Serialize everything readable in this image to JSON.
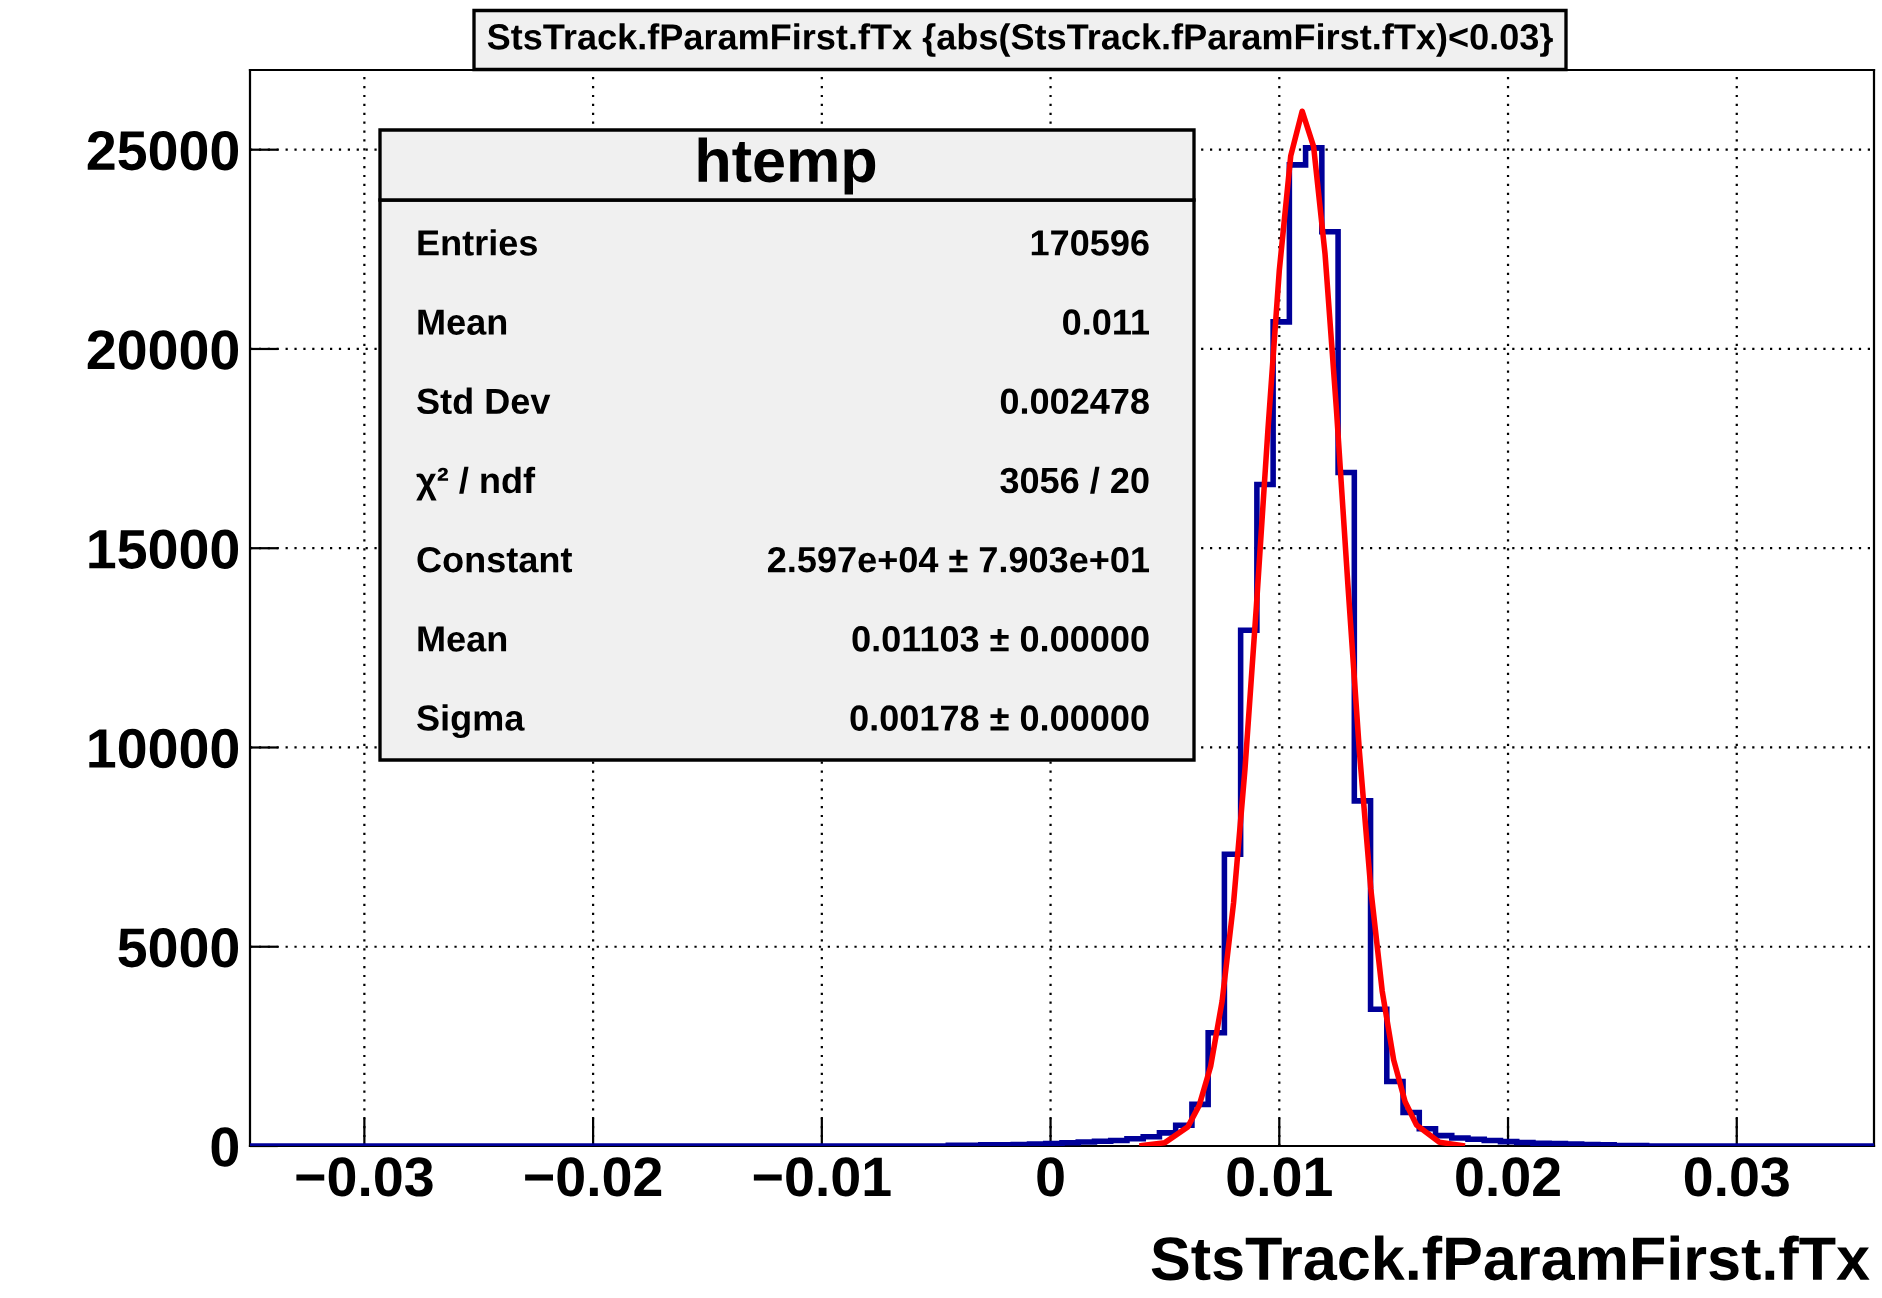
{
  "chart_data": {
    "type": "histogram",
    "title": "StsTrack.fParamFirst.fTx {abs(StsTrack.fParamFirst.fTx)<0.03}",
    "xlabel": "StsTrack.fParamFirst.fTx",
    "xlim": [
      -0.035,
      0.036
    ],
    "xticks": [
      {
        "value": -0.03,
        "label": "−0.03"
      },
      {
        "value": -0.02,
        "label": "−0.02"
      },
      {
        "value": -0.01,
        "label": "−0.01"
      },
      0,
      0.01,
      0.02,
      0.03
    ],
    "ylim": [
      0,
      27000
    ],
    "yticks": [
      0,
      5000,
      10000,
      15000,
      20000,
      25000
    ],
    "grid": true,
    "legend": false,
    "series": [
      {
        "type": "histogram",
        "color": "#000099",
        "bins": [
          -0.035,
          -0.03429,
          -0.03358,
          -0.03287,
          -0.03216,
          -0.03145,
          -0.03074,
          -0.03003,
          -0.02932,
          -0.02861,
          -0.0279,
          -0.02719,
          -0.02648,
          -0.02577,
          -0.02506,
          -0.02435,
          -0.02364,
          -0.02293,
          -0.02222,
          -0.02151,
          -0.0208,
          -0.02009,
          -0.01938,
          -0.01867,
          -0.01796,
          -0.01725,
          -0.01654,
          -0.01583,
          -0.01512,
          -0.01441,
          -0.0137,
          -0.01299,
          -0.01228,
          -0.01157,
          -0.01086,
          -0.01015,
          -0.00944,
          -0.00873,
          -0.00802,
          -0.00731,
          -0.0066,
          -0.00589,
          -0.00518,
          -0.00447,
          -0.00376,
          -0.00305,
          -0.00234,
          -0.00163,
          -0.00092,
          -0.00021,
          0.0005,
          0.00121,
          0.00192,
          0.00263,
          0.00334,
          0.00405,
          0.00476,
          0.00547,
          0.00618,
          0.00689,
          0.0076,
          0.00831,
          0.00902,
          0.00973,
          0.01044,
          0.01115,
          0.01186,
          0.01257,
          0.01328,
          0.01399,
          0.0147,
          0.01541,
          0.01612,
          0.01683,
          0.01754,
          0.01825,
          0.01896,
          0.01967,
          0.02038,
          0.02109,
          0.0218,
          0.02251,
          0.02322,
          0.02393,
          0.02464,
          0.02535,
          0.02606,
          0.02677,
          0.02748,
          0.02819,
          0.0289,
          0.02961,
          0.03032,
          0.03103,
          0.03174,
          0.03245,
          0.03316,
          0.03387,
          0.03458,
          0.03529,
          0.036
        ],
        "values": [
          0,
          0,
          0,
          0,
          0,
          0,
          0,
          0,
          0,
          0,
          0,
          0,
          0,
          0,
          0,
          0,
          0,
          0,
          0,
          0,
          0,
          0,
          0,
          0,
          0,
          0,
          0,
          0,
          0,
          0,
          0,
          0,
          0,
          0,
          0,
          0,
          0,
          0,
          0,
          0,
          0,
          0,
          0,
          20,
          25,
          30,
          35,
          40,
          50,
          60,
          80,
          100,
          120,
          140,
          180,
          230,
          330,
          520,
          1045,
          2840,
          7320,
          12940,
          16600,
          20680,
          24620,
          25050,
          22940,
          16900,
          8660,
          3430,
          1620,
          840,
          435,
          260,
          200,
          170,
          140,
          110,
          90,
          70,
          60,
          50,
          40,
          30,
          20,
          15,
          0,
          0,
          0,
          0,
          0,
          0,
          0,
          0,
          0,
          0,
          0,
          0,
          0,
          0
        ]
      },
      {
        "type": "line",
        "color": "#ff0000",
        "x": [
          0.004,
          0.005,
          0.006,
          0.0065,
          0.007,
          0.0075,
          0.008,
          0.0085,
          0.009,
          0.0095,
          0.01,
          0.0105,
          0.011,
          0.0115,
          0.012,
          0.0125,
          0.013,
          0.0135,
          0.014,
          0.0145,
          0.015,
          0.0155,
          0.016,
          0.017,
          0.018
        ],
        "values": [
          11,
          84,
          479,
          1019,
          2001,
          3632,
          6098,
          9459,
          13556,
          17945,
          21968,
          24845,
          25966,
          25079,
          22386,
          18465,
          14076,
          9913,
          6456,
          3885,
          2161,
          1109,
          527,
          94,
          12
        ]
      }
    ],
    "annotations": [
      "htemp",
      "Entries",
      "170596",
      "Mean",
      "0.011",
      "Std Dev",
      "0.002478",
      "χ² / ndf",
      "3056 / 20",
      "Constant",
      "2.597e+04 ± 7.903e+01",
      "Mean",
      "0.01103 ± 0.00000",
      "Sigma",
      "0.00178 ± 0.00000"
    ]
  }
}
